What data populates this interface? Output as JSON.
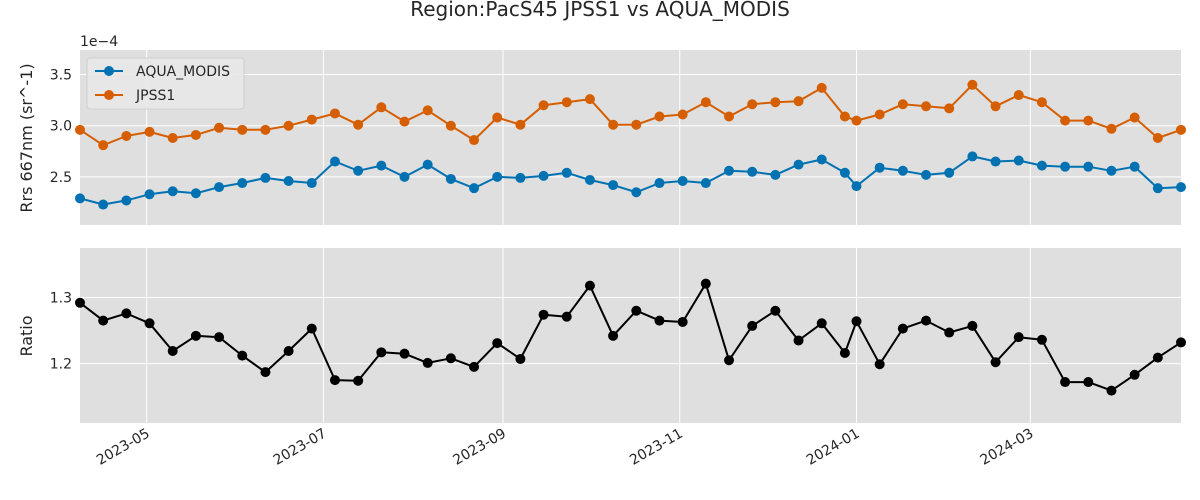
{
  "chart_data": [
    {
      "type": "line",
      "title": "Region:PacS45 JPSS1 vs AQUA_MODIS",
      "ylabel": "Rrs 667nm (sr^-1)",
      "offset_label": "1e−4",
      "ylim": [
        2.03,
        3.74
      ],
      "yticks": [
        2.5,
        3.0,
        3.5
      ],
      "ytick_labels": [
        "2.5",
        "3.0",
        "3.5"
      ],
      "xlim": [
        "2023-04-08",
        "2024-04-22"
      ],
      "legend": "upper-left",
      "grid": true,
      "x": [
        "2023-04-08",
        "2023-04-16",
        "2023-04-24",
        "2023-05-02",
        "2023-05-10",
        "2023-05-18",
        "2023-05-26",
        "2023-06-03",
        "2023-06-11",
        "2023-06-19",
        "2023-06-27",
        "2023-07-05",
        "2023-07-13",
        "2023-07-21",
        "2023-07-29",
        "2023-08-06",
        "2023-08-14",
        "2023-08-22",
        "2023-08-30",
        "2023-09-07",
        "2023-09-15",
        "2023-09-23",
        "2023-10-01",
        "2023-10-09",
        "2023-10-17",
        "2023-10-25",
        "2023-11-02",
        "2023-11-10",
        "2023-11-18",
        "2023-11-26",
        "2023-12-04",
        "2023-12-12",
        "2023-12-20",
        "2023-12-28",
        "2024-01-01",
        "2024-01-09",
        "2024-01-17",
        "2024-01-25",
        "2024-02-02",
        "2024-02-10",
        "2024-02-18",
        "2024-02-26",
        "2024-03-05",
        "2024-03-13",
        "2024-03-21",
        "2024-03-29",
        "2024-04-06",
        "2024-04-14",
        "2024-04-22"
      ],
      "series": [
        {
          "name": "AQUA_MODIS",
          "color": "#0072b2",
          "values": [
            2.29,
            2.23,
            2.27,
            2.33,
            2.36,
            2.34,
            2.4,
            2.44,
            2.49,
            2.46,
            2.44,
            2.65,
            2.56,
            2.61,
            2.5,
            2.62,
            2.48,
            2.39,
            2.5,
            2.49,
            2.51,
            2.54,
            2.47,
            2.42,
            2.35,
            2.44,
            2.46,
            2.44,
            2.56,
            2.55,
            2.52,
            2.62,
            2.67,
            2.54,
            2.41,
            2.59,
            2.56,
            2.52,
            2.54,
            2.7,
            2.65,
            2.66,
            2.61,
            2.6,
            2.6,
            2.56,
            2.6,
            2.39,
            2.4
          ]
        },
        {
          "name": "JPSS1",
          "color": "#d55e00",
          "values": [
            2.96,
            2.81,
            2.9,
            2.94,
            2.88,
            2.91,
            2.98,
            2.96,
            2.96,
            3.0,
            3.06,
            3.12,
            3.01,
            3.18,
            3.04,
            3.15,
            3.0,
            2.86,
            3.08,
            3.01,
            3.2,
            3.23,
            3.26,
            3.01,
            3.01,
            3.09,
            3.11,
            3.23,
            3.09,
            3.21,
            3.23,
            3.24,
            3.37,
            3.09,
            3.05,
            3.11,
            3.21,
            3.19,
            3.17,
            3.4,
            3.19,
            3.3,
            3.23,
            3.05,
            3.05,
            2.97,
            3.08,
            2.88,
            2.96
          ]
        }
      ]
    },
    {
      "type": "line",
      "ylabel": "Ratio",
      "ylim": [
        1.11,
        1.375
      ],
      "yticks": [
        1.2,
        1.3
      ],
      "ytick_labels": [
        "1.2",
        "1.3"
      ],
      "xlim": [
        "2023-04-08",
        "2024-04-22"
      ],
      "xticks": [
        "2023-05-01",
        "2023-07-01",
        "2023-09-01",
        "2023-11-01",
        "2024-01-01",
        "2024-03-01"
      ],
      "xtick_labels": [
        "2023-05",
        "2023-07",
        "2023-09",
        "2023-11",
        "2024-01",
        "2024-03"
      ],
      "grid": true,
      "x": [
        "2023-04-08",
        "2023-04-16",
        "2023-04-24",
        "2023-05-02",
        "2023-05-10",
        "2023-05-18",
        "2023-05-26",
        "2023-06-03",
        "2023-06-11",
        "2023-06-19",
        "2023-06-27",
        "2023-07-05",
        "2023-07-13",
        "2023-07-21",
        "2023-07-29",
        "2023-08-06",
        "2023-08-14",
        "2023-08-22",
        "2023-08-30",
        "2023-09-07",
        "2023-09-15",
        "2023-09-23",
        "2023-10-01",
        "2023-10-09",
        "2023-10-17",
        "2023-10-25",
        "2023-11-02",
        "2023-11-10",
        "2023-11-18",
        "2023-11-26",
        "2023-12-04",
        "2023-12-12",
        "2023-12-20",
        "2023-12-28",
        "2024-01-01",
        "2024-01-09",
        "2024-01-17",
        "2024-01-25",
        "2024-02-02",
        "2024-02-10",
        "2024-02-18",
        "2024-02-26",
        "2024-03-05",
        "2024-03-13",
        "2024-03-21",
        "2024-03-29",
        "2024-04-06",
        "2024-04-14",
        "2024-04-22"
      ],
      "series": [
        {
          "color": "#000000",
          "values": [
            1.292,
            1.265,
            1.276,
            1.261,
            1.219,
            1.242,
            1.24,
            1.212,
            1.187,
            1.219,
            1.253,
            1.175,
            1.174,
            1.217,
            1.215,
            1.201,
            1.208,
            1.195,
            1.231,
            1.207,
            1.274,
            1.271,
            1.318,
            1.242,
            1.28,
            1.265,
            1.263,
            1.321,
            1.205,
            1.257,
            1.28,
            1.235,
            1.261,
            1.216,
            1.264,
            1.199,
            1.253,
            1.265,
            1.247,
            1.257,
            1.202,
            1.24,
            1.236,
            1.172,
            1.172,
            1.159,
            1.183,
            1.209,
            1.232
          ]
        }
      ]
    }
  ]
}
